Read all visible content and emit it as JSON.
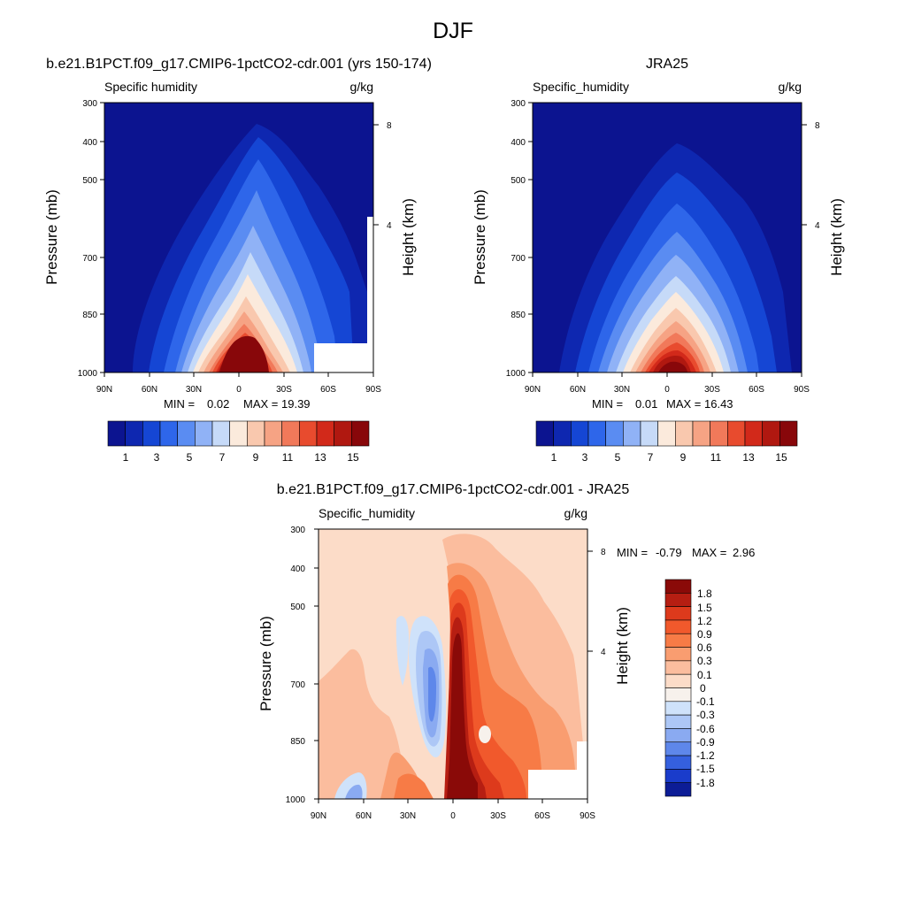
{
  "figure_title": "DJF",
  "chart_data": [
    {
      "type": "contour",
      "panel_title": "b.e21.B1PCT.f09_g17.CMIP6-1pctCO2-cdr.001 (yrs 150-174)",
      "left_label": "Specific humidity",
      "units": "g/kg",
      "ylabel": "Pressure (mb)",
      "y2label": "Height (km)",
      "x_ticks": [
        "90N",
        "60N",
        "30N",
        "0",
        "30S",
        "60S",
        "90S"
      ],
      "y_ticks": [
        "300",
        "400",
        "500",
        "700",
        "850",
        "1000"
      ],
      "y2_ticks": [
        "8",
        "4"
      ],
      "ylim": [
        1000,
        300
      ],
      "y_scale": "log",
      "stats": {
        "min": "0.02",
        "max": "19.39"
      },
      "colorbar_labels": [
        "1",
        "3",
        "5",
        "7",
        "9",
        "11",
        "13",
        "15"
      ],
      "colorbar_colors": [
        "#0c1490",
        "#0e27b0",
        "#1546d4",
        "#2e66ea",
        "#5a8cf2",
        "#90b2f6",
        "#c6daf8",
        "#fbeadc",
        "#f9c8ae",
        "#f6a384",
        "#f1795a",
        "#e84b2e",
        "#d2291a",
        "#b01810",
        "#88070a"
      ],
      "max_value": 19.39
    },
    {
      "type": "contour",
      "panel_title": "JRA25",
      "left_label": "Specific_humidity",
      "units": "g/kg",
      "ylabel": "Pressure (mb)",
      "y2label": "Height (km)",
      "x_ticks": [
        "90N",
        "60N",
        "30N",
        "0",
        "30S",
        "60S",
        "90S"
      ],
      "y_ticks": [
        "300",
        "400",
        "500",
        "700",
        "850",
        "1000"
      ],
      "y2_ticks": [
        "8",
        "4"
      ],
      "ylim": [
        1000,
        300
      ],
      "y_scale": "log",
      "stats": {
        "min": "0.01",
        "max": "16.43"
      },
      "colorbar_labels": [
        "1",
        "3",
        "5",
        "7",
        "9",
        "11",
        "13",
        "15"
      ],
      "colorbar_colors": [
        "#0c1490",
        "#0e27b0",
        "#1546d4",
        "#2e66ea",
        "#5a8cf2",
        "#90b2f6",
        "#c6daf8",
        "#fbeadc",
        "#f9c8ae",
        "#f6a384",
        "#f1795a",
        "#e84b2e",
        "#d2291a",
        "#b01810",
        "#88070a"
      ],
      "max_value": 16.43
    },
    {
      "type": "contour",
      "panel_title": "b.e21.B1PCT.f09_g17.CMIP6-1pctCO2-cdr.001 - JRA25",
      "left_label": "Specific_humidity",
      "units": "g/kg",
      "ylabel": "Pressure (mb)",
      "y2label": "Height (km)",
      "x_ticks": [
        "90N",
        "60N",
        "30N",
        "0",
        "30S",
        "60S",
        "90S"
      ],
      "y_ticks": [
        "300",
        "400",
        "500",
        "700",
        "850",
        "1000"
      ],
      "y2_ticks": [
        "8",
        "4"
      ],
      "ylim": [
        1000,
        300
      ],
      "y_scale": "log",
      "stats": {
        "min": "-0.79",
        "max": "2.96"
      },
      "colorbar_labels": [
        "1.8",
        "1.5",
        "1.2",
        "0.9",
        "0.6",
        "0.3",
        "0.1",
        "0",
        "-0.1",
        "-0.3",
        "-0.6",
        "-0.9",
        "-1.2",
        "-1.5",
        "-1.8"
      ],
      "colorbar_colors": [
        "#8a0a08",
        "#b61e12",
        "#dd3a1c",
        "#f1592c",
        "#f77b46",
        "#f99d70",
        "#fbbd9e",
        "#fcdcc8",
        "#f7f1ec",
        "#cfe2fa",
        "#adc7f6",
        "#8aaaf1",
        "#5e87ea",
        "#3560de",
        "#1a3ccb",
        "#0c1c96"
      ]
    }
  ]
}
